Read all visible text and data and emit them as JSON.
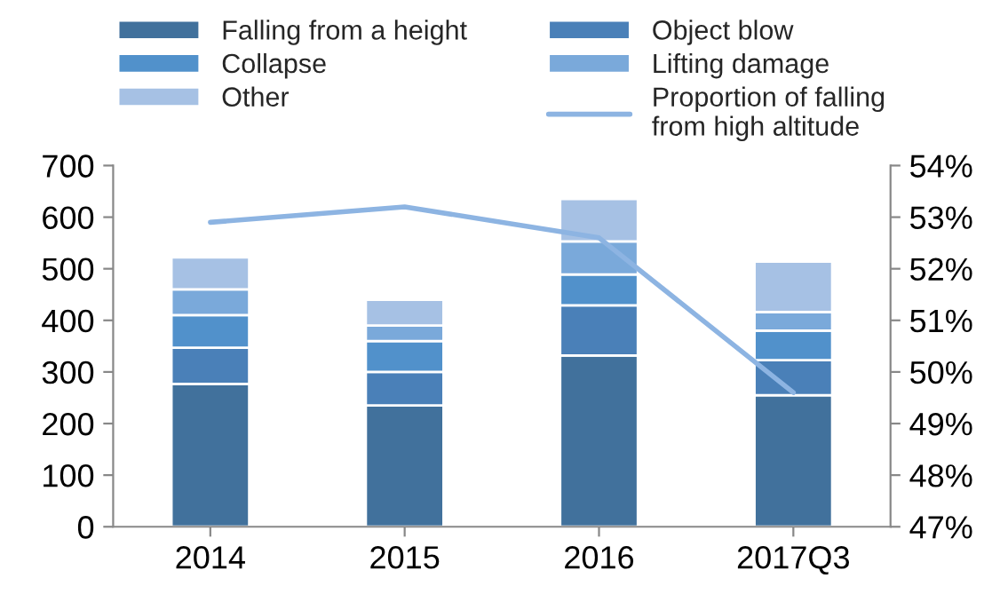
{
  "chart_data": {
    "type": "bar",
    "stacked": true,
    "categories": [
      "2014",
      "2015",
      "2016",
      "2017Q3"
    ],
    "series": [
      {
        "name": "Falling from a height",
        "color": "#41719c",
        "values": [
          277,
          235,
          332,
          255
        ]
      },
      {
        "name": "Object blow",
        "color": "#4a80b8",
        "values": [
          70,
          65,
          97,
          68
        ]
      },
      {
        "name": "Collapse",
        "color": "#5191cb",
        "values": [
          63,
          60,
          60,
          57
        ]
      },
      {
        "name": "Lifting damage",
        "color": "#7aa9da",
        "values": [
          50,
          30,
          64,
          36
        ]
      },
      {
        "name": "Other",
        "color": "#a6c1e4",
        "values": [
          62,
          50,
          82,
          98
        ]
      },
      {
        "name": "Proportion of falling\nfrom high altitude",
        "type": "line",
        "axis": "y2",
        "color": "#8db4e2",
        "values": [
          52.9,
          53.2,
          52.6,
          49.6
        ]
      }
    ],
    "ylim": [
      0,
      700
    ],
    "yticks": [
      0,
      100,
      200,
      300,
      400,
      500,
      600,
      700
    ],
    "y2lim": [
      47,
      54
    ],
    "y2ticks": [
      {
        "value": 47,
        "label": "47%"
      },
      {
        "value": 48,
        "label": "48%"
      },
      {
        "value": 49,
        "label": "49%"
      },
      {
        "value": 50,
        "label": "50%"
      },
      {
        "value": 51,
        "label": "51%"
      },
      {
        "value": 52,
        "label": "52%"
      },
      {
        "value": 53,
        "label": "53%"
      },
      {
        "value": 54,
        "label": "54%"
      }
    ],
    "legend": "top",
    "grid": false,
    "marker": "none",
    "line_style": "solid"
  }
}
